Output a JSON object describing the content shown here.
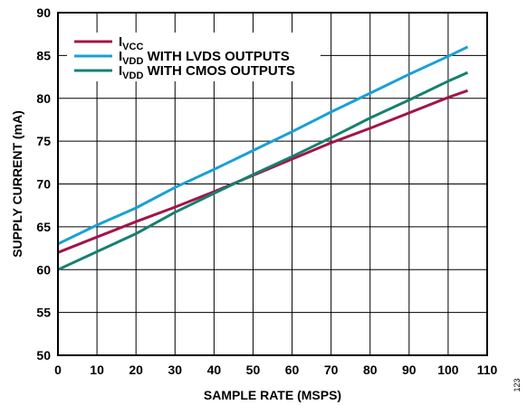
{
  "chart_data": {
    "type": "line",
    "xlabel": "SAMPLE RATE (MSPS)",
    "ylabel": "SUPPLY CURRENT (mA)",
    "xlim": [
      0,
      110
    ],
    "ylim": [
      50,
      90
    ],
    "x_ticks": [
      "0",
      "10",
      "20",
      "30",
      "40",
      "50",
      "60",
      "70",
      "80",
      "90",
      "100",
      "110"
    ],
    "y_ticks": [
      "50",
      "55",
      "60",
      "65",
      "70",
      "75",
      "80",
      "85",
      "90"
    ],
    "grid": true,
    "legend_position": "top-left",
    "series": [
      {
        "name_main": "I",
        "name_sub": "VCC",
        "name_rest": "",
        "color": "#a3144a",
        "points": [
          [
            0,
            62
          ],
          [
            10,
            63.8
          ],
          [
            20,
            65.6
          ],
          [
            30,
            67.3
          ],
          [
            40,
            69.1
          ],
          [
            50,
            71
          ],
          [
            60,
            72.9
          ],
          [
            70,
            74.8
          ],
          [
            80,
            76.5
          ],
          [
            90,
            78.3
          ],
          [
            100,
            80.1
          ],
          [
            105,
            80.9
          ]
        ]
      },
      {
        "name_main": "I",
        "name_sub": "VDD",
        "name_rest": " WITH LVDS OUTPUTS",
        "color": "#18a0d6",
        "points": [
          [
            0,
            63
          ],
          [
            10,
            65.2
          ],
          [
            20,
            67.2
          ],
          [
            30,
            69.6
          ],
          [
            40,
            71.7
          ],
          [
            50,
            73.9
          ],
          [
            60,
            76.1
          ],
          [
            70,
            78.4
          ],
          [
            80,
            80.6
          ],
          [
            90,
            82.8
          ],
          [
            100,
            84.9
          ],
          [
            105,
            86
          ]
        ]
      },
      {
        "name_main": "I",
        "name_sub": "VDD",
        "name_rest": " WITH CMOS OUTPUTS",
        "color": "#168070",
        "points": [
          [
            0,
            60
          ],
          [
            10,
            62.1
          ],
          [
            20,
            64.2
          ],
          [
            30,
            66.7
          ],
          [
            40,
            68.9
          ],
          [
            50,
            71.1
          ],
          [
            60,
            73.2
          ],
          [
            70,
            75.4
          ],
          [
            80,
            77.7
          ],
          [
            90,
            79.8
          ],
          [
            100,
            82
          ],
          [
            105,
            83
          ]
        ]
      }
    ]
  },
  "figure_id": "123"
}
